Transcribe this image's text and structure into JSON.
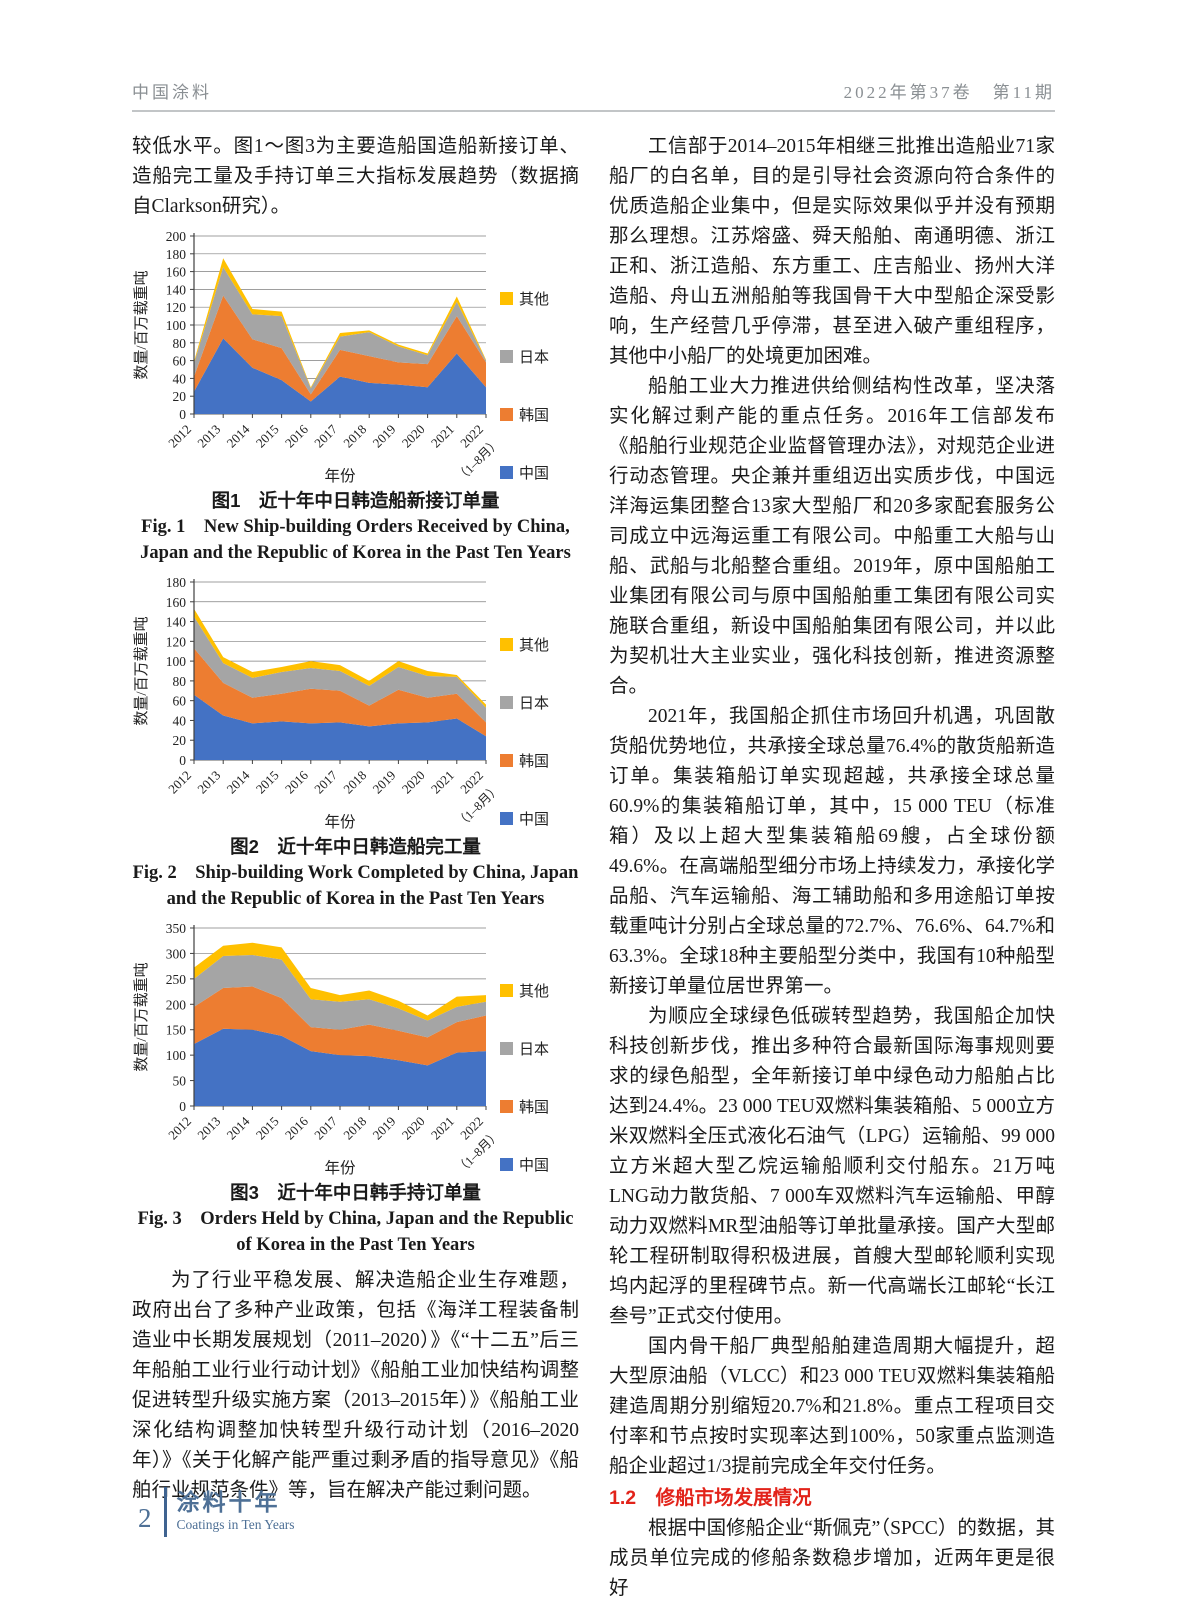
{
  "header": {
    "journal": "中国涂料",
    "issue": "2022年第37卷　第11期"
  },
  "left_column": {
    "intro": "较低水平。图1～图3为主要造船国造船新接订单、造船完工量及手持订单三大指标发展趋势（数据摘自Clarkson研究）。",
    "policy_para": "为了行业平稳发展、解决造船企业生存难题，政府出台了多种产业政策，包括《海洋工程装备制造业中长期发展规划（2011–2020）》《“十二五”后三年船舶工业行业行动计划》《船舶工业加快结构调整促进转型升级实施方案（2013–2015年）》《船舶工业深化结构调整加快转型升级行动计划（2016–2020年）》《关于化解产能严重过剩矛盾的指导意见》《船舶行业规范条件》等，旨在解决产能过剩问题。"
  },
  "figures": [
    {
      "caption_zh": "图1　近十年中日韩造船新接订单量",
      "caption_en": "Fig. 1　New Ship-building Orders Received by China, Japan and the Republic of Korea in the Past Ten Years"
    },
    {
      "caption_zh": "图2　近十年中日韩造船完工量",
      "caption_en": "Fig. 2　Ship-building Work Completed by China, Japan and the Republic of Korea in the Past Ten Years"
    },
    {
      "caption_zh": "图3　近十年中日韩手持订单量",
      "caption_en": "Fig. 3　Orders Held by China, Japan and the Republic of Korea in the Past Ten Years"
    }
  ],
  "right_column": {
    "paragraphs": [
      "工信部于2014–2015年相继三批推出造船业71家船厂的白名单，目的是引导社会资源向符合条件的优质造船企业集中，但是实际效果似乎并没有预期那么理想。江苏熔盛、舜天船舶、南通明德、浙江正和、浙江造船、东方重工、庄吉船业、扬州大洋造船、舟山五洲船舶等我国骨干大中型船企深受影响，生产经营几乎停滞，甚至进入破产重组程序，其他中小船厂的处境更加困难。",
      "船舶工业大力推进供给侧结构性改革，坚决落实化解过剩产能的重点任务。2016年工信部发布《船舶行业规范企业监督管理办法》，对规范企业进行动态管理。央企兼并重组迈出实质步伐，中国远洋海运集团整合13家大型船厂和20多家配套服务公司成立中远海运重工有限公司。中船重工大船与山船、武船与北船整合重组。2019年，原中国船舶工业集团有限公司与原中国船舶重工集团有限公司实施联合重组，新设中国船舶集团有限公司，并以此为契机壮大主业实业，强化科技创新，推进资源整合。",
      "2021年，我国船企抓住市场回升机遇，巩固散货船优势地位，共承接全球总量76.4%的散货船新造订单。集装箱船订单实现超越，共承接全球总量60.9%的集装箱船订单，其中，15 000 TEU（标准箱）及以上超大型集装箱船69艘，占全球份额49.6%。在高端船型细分市场上持续发力，承接化学品船、汽车运输船、海工辅助船和多用途船订单按载重吨计分别占全球总量的72.7%、76.6%、64.7%和63.3%。全球18种主要船型分类中，我国有10种船型新接订单量位居世界第一。",
      "为顺应全球绿色低碳转型趋势，我国船企加快科技创新步伐，推出多种符合最新国际海事规则要求的绿色船型，全年新接订单中绿色动力船舶占比达到24.4%。23 000 TEU双燃料集装箱船、5 000立方米双燃料全压式液化石油气（LPG）运输船、99 000立方米超大型乙烷运输船顺利交付船东。21万吨LNG动力散货船、7 000车双燃料汽车运输船、甲醇动力双燃料MR型油船等订单批量承接。国产大型邮轮工程研制取得积极进展，首艘大型邮轮顺利实现坞内起浮的里程碑节点。新一代高端长江邮轮“长江叁号”正式交付使用。",
      "国内骨干船厂典型船舶建造周期大幅提升，超大型原油船（VLCC）和23 000 TEU双燃料集装箱船建造周期分别缩短20.7%和21.8%。重点工程项目交付率和节点按时实现率达到100%，50家重点监测造船企业超过1/3提前完成全年交付任务。"
    ],
    "section_heading": "1.2　修船市场发展情况",
    "last_paragraph": "根据中国修船企业“斯佩克”（SPCC）的数据，其成员单位完成的修船条数稳步增加，近两年更是很好"
  },
  "footer": {
    "page_number": "2",
    "brand_zh": "涂料十年",
    "brand_en": "Coatings in Ten Years"
  },
  "colors": {
    "china_blue": "#4472C4",
    "korea_orange": "#ED7D31",
    "japan_gray": "#A5A5A5",
    "other_yellow": "#FFC000",
    "heading_red": "#e2231a",
    "footer_blue": "#4e7096"
  },
  "chart_data": [
    {
      "type": "area",
      "stacked": true,
      "title": "图1 近十年中日韩造船新接订单量",
      "categories": [
        "2012",
        "2013",
        "2014",
        "2015",
        "2016",
        "2017",
        "2018",
        "2019",
        "2020",
        "2021",
        "2022"
      ],
      "last_category_note": "（1–8月）",
      "xlabel": "年份",
      "ylabel": "数量/百万载重吨",
      "ylim": [
        0,
        200
      ],
      "ytick_step": 20,
      "grid": true,
      "legend_position": "right",
      "series": [
        {
          "name": "中国",
          "color": "#4472C4",
          "values": [
            25,
            85,
            52,
            38,
            14,
            42,
            35,
            33,
            30,
            68,
            30
          ]
        },
        {
          "name": "韩国",
          "color": "#ED7D31",
          "values": [
            17,
            48,
            32,
            36,
            8,
            30,
            30,
            25,
            26,
            42,
            28
          ]
        },
        {
          "name": "日本",
          "color": "#A5A5A5",
          "values": [
            15,
            32,
            28,
            36,
            7,
            15,
            27,
            18,
            10,
            16,
            2
          ]
        },
        {
          "name": "其他",
          "color": "#FFC000",
          "values": [
            2,
            10,
            6,
            5,
            1,
            4,
            2,
            2,
            2,
            6,
            1
          ]
        }
      ],
      "legend": [
        {
          "label": "其他",
          "color": "#FFC000"
        },
        {
          "label": "日本",
          "color": "#A5A5A5"
        },
        {
          "label": "韩国",
          "color": "#ED7D31"
        },
        {
          "label": "中国",
          "color": "#4472C4"
        }
      ]
    },
    {
      "type": "area",
      "stacked": true,
      "title": "图2 近十年中日韩造船完工量",
      "categories": [
        "2012",
        "2013",
        "2014",
        "2015",
        "2016",
        "2017",
        "2018",
        "2019",
        "2020",
        "2021",
        "2022"
      ],
      "last_category_note": "（1–8月）",
      "xlabel": "年份",
      "ylabel": "数量/百万载重吨",
      "ylim": [
        0,
        180
      ],
      "ytick_step": 20,
      "grid": true,
      "legend_position": "right",
      "series": [
        {
          "name": "中国",
          "color": "#4472C4",
          "values": [
            66,
            45,
            37,
            39,
            37,
            38,
            34,
            37,
            38,
            42,
            24
          ]
        },
        {
          "name": "韩国",
          "color": "#ED7D31",
          "values": [
            47,
            33,
            26,
            28,
            35,
            32,
            21,
            34,
            25,
            25,
            14
          ]
        },
        {
          "name": "日本",
          "color": "#A5A5A5",
          "values": [
            32,
            20,
            20,
            22,
            21,
            20,
            20,
            23,
            22,
            17,
            15
          ]
        },
        {
          "name": "其他",
          "color": "#FFC000",
          "values": [
            8,
            6,
            6,
            5,
            7,
            6,
            5,
            6,
            5,
            2,
            3
          ]
        }
      ],
      "legend": [
        {
          "label": "其他",
          "color": "#FFC000"
        },
        {
          "label": "日本",
          "color": "#A5A5A5"
        },
        {
          "label": "韩国",
          "color": "#ED7D31"
        },
        {
          "label": "中国",
          "color": "#4472C4"
        }
      ]
    },
    {
      "type": "area",
      "stacked": true,
      "title": "图3 近十年中日韩手持订单量",
      "categories": [
        "2012",
        "2013",
        "2014",
        "2015",
        "2016",
        "2017",
        "2018",
        "2019",
        "2020",
        "2021",
        "2022"
      ],
      "last_category_note": "（1–8月）",
      "xlabel": "年份",
      "ylabel": "数量/百万载重吨",
      "ylim": [
        0,
        350
      ],
      "ytick_step": 50,
      "grid": true,
      "legend_position": "right",
      "series": [
        {
          "name": "中国",
          "color": "#4472C4",
          "values": [
            122,
            152,
            150,
            138,
            108,
            100,
            98,
            90,
            80,
            105,
            108
          ]
        },
        {
          "name": "韩国",
          "color": "#ED7D31",
          "values": [
            73,
            80,
            85,
            74,
            47,
            50,
            62,
            58,
            55,
            60,
            70
          ]
        },
        {
          "name": "日本",
          "color": "#A5A5A5",
          "values": [
            55,
            63,
            62,
            76,
            55,
            55,
            50,
            44,
            33,
            30,
            27
          ]
        },
        {
          "name": "其他",
          "color": "#FFC000",
          "values": [
            22,
            20,
            24,
            24,
            22,
            13,
            17,
            15,
            10,
            20,
            13
          ]
        }
      ],
      "legend": [
        {
          "label": "其他",
          "color": "#FFC000"
        },
        {
          "label": "日本",
          "color": "#A5A5A5"
        },
        {
          "label": "韩国",
          "color": "#ED7D31"
        },
        {
          "label": "中国",
          "color": "#4472C4"
        }
      ]
    }
  ]
}
